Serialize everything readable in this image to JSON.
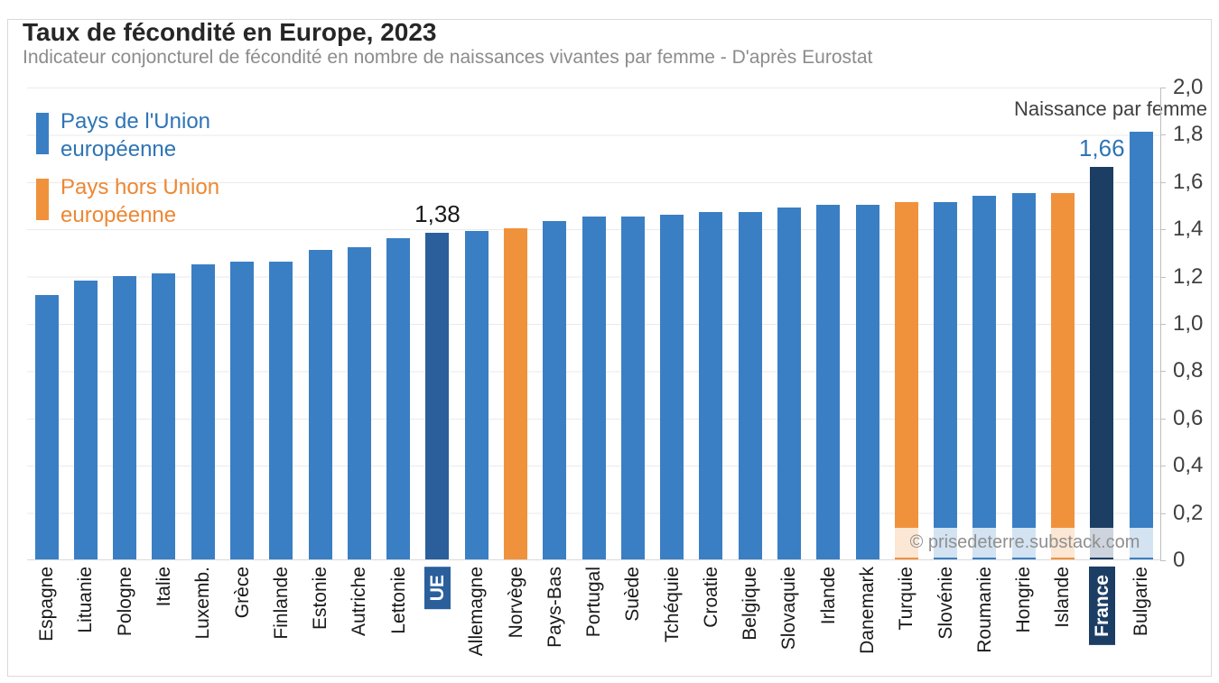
{
  "header": {
    "title": "Taux de fécondité en Europe, 2023",
    "subtitle": "Indicateur conjoncturel de fécondité en nombre de naissances vivantes par femme - D'après Eurostat"
  },
  "legend": {
    "items": [
      {
        "line1": "Pays de l'Union",
        "line2": "européenne",
        "swatch_color": "#3A7FC4",
        "text_color": "#2E74B5"
      },
      {
        "line1": "Pays hors Union",
        "line2": "européenne",
        "swatch_color": "#F0923C",
        "text_color": "#ED8733"
      }
    ]
  },
  "axis": {
    "unit_label": "Naissance par femme",
    "y_ticks": [
      "2,0",
      "1,8",
      "1,6",
      "1,4",
      "1,2",
      "1,0",
      "0,8",
      "0,6",
      "0,4",
      "0,2",
      "0"
    ]
  },
  "chart_data": {
    "type": "bar",
    "title": "Taux de fécondité en Europe, 2023",
    "subtitle": "Indicateur conjoncturel de fécondité en nombre de naissances vivantes par femme - D'après Eurostat",
    "ylabel": "Naissance par femme",
    "ylim": [
      0,
      2.0
    ],
    "y_tick_step": 0.2,
    "grid": "horizontal",
    "legend_position": "top-left",
    "categories": [
      "Espagne",
      "Lituanie",
      "Pologne",
      "Italie",
      "Luxemb.",
      "Grèce",
      "Finlande",
      "Estonie",
      "Autriche",
      "Lettonie",
      "UE",
      "Allemagne",
      "Norvège",
      "Pays-Bas",
      "Portugal",
      "Suède",
      "Tchéquie",
      "Croatie",
      "Belgique",
      "Slovaquie",
      "Irlande",
      "Danemark",
      "Turquie",
      "Slovénie",
      "Roumanie",
      "Hongrie",
      "Islande",
      "France",
      "Bulgarie"
    ],
    "values": [
      1.12,
      1.18,
      1.2,
      1.21,
      1.25,
      1.26,
      1.26,
      1.31,
      1.32,
      1.36,
      1.38,
      1.39,
      1.4,
      1.43,
      1.45,
      1.45,
      1.46,
      1.47,
      1.47,
      1.49,
      1.5,
      1.5,
      1.51,
      1.51,
      1.54,
      1.55,
      1.55,
      1.66,
      1.81
    ],
    "groups": [
      "eu",
      "eu",
      "eu",
      "eu",
      "eu",
      "eu",
      "eu",
      "eu",
      "eu",
      "eu",
      "eu_aggregate",
      "eu",
      "non_eu",
      "eu",
      "eu",
      "eu",
      "eu",
      "eu",
      "eu",
      "eu",
      "eu",
      "eu",
      "non_eu",
      "eu",
      "eu",
      "eu",
      "non_eu",
      "eu_highlight",
      "eu"
    ],
    "colors": {
      "eu": "#3A7FC4",
      "non_eu": "#F0923C",
      "eu_aggregate": "#2A5F9C",
      "eu_highlight": "#1C3D64"
    },
    "badged_labels": {
      "UE": "#2A5F9C",
      "France": "#1C3D64"
    },
    "annotations": [
      {
        "category": "UE",
        "text": "1,38",
        "color": "#1A1A1A"
      },
      {
        "category": "France",
        "text": "1,66",
        "color": "#2E74B5"
      }
    ]
  },
  "watermark": {
    "text": "© prisedeterre.substack.com"
  }
}
